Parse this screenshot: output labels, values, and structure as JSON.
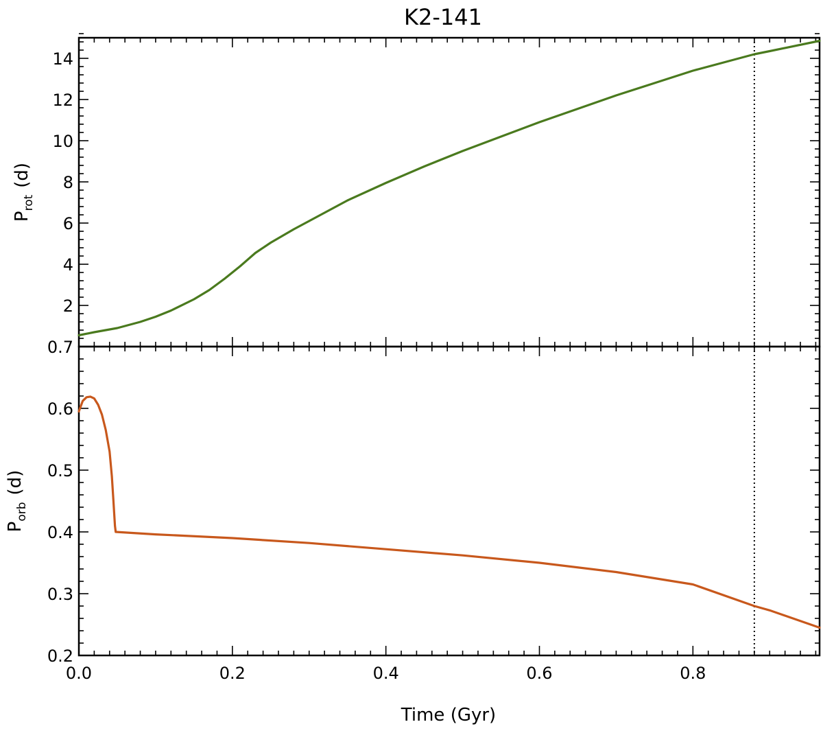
{
  "chart_data": [
    {
      "type": "line",
      "panel": "top",
      "title": "K2-141",
      "xlabel": "",
      "ylabel_main": "P",
      "ylabel_sub": "rot",
      "ylabel_unit": "(d)",
      "xlim": [
        0,
        0.965
      ],
      "ylim": [
        0,
        15
      ],
      "xticks": [
        0.0,
        0.2,
        0.4,
        0.6,
        0.8
      ],
      "yticks": [
        2,
        4,
        6,
        8,
        10,
        12,
        14
      ],
      "ytick_labels": [
        "2",
        "4",
        "6",
        "8",
        "10",
        "12",
        "14"
      ],
      "vline_x": 0.88,
      "series": [
        {
          "color": "#4a7a1e",
          "x": [
            0.0,
            0.02,
            0.05,
            0.08,
            0.1,
            0.12,
            0.15,
            0.17,
            0.19,
            0.21,
            0.23,
            0.25,
            0.28,
            0.3,
            0.35,
            0.4,
            0.45,
            0.5,
            0.55,
            0.6,
            0.65,
            0.7,
            0.75,
            0.8,
            0.85,
            0.88,
            0.9,
            0.965
          ],
          "y": [
            0.55,
            0.7,
            0.9,
            1.2,
            1.45,
            1.75,
            2.3,
            2.75,
            3.3,
            3.9,
            4.55,
            5.05,
            5.7,
            6.1,
            7.1,
            7.95,
            8.75,
            9.5,
            10.2,
            10.9,
            11.55,
            12.2,
            12.8,
            13.4,
            13.9,
            14.2,
            14.35,
            14.85
          ]
        }
      ]
    },
    {
      "type": "line",
      "panel": "bottom",
      "xlabel": "Time (Gyr)",
      "ylabel_main": "P",
      "ylabel_sub": "orb",
      "ylabel_unit": "(d)",
      "xlim": [
        0,
        0.965
      ],
      "ylim": [
        0.2,
        0.7
      ],
      "xticks": [
        0.0,
        0.2,
        0.4,
        0.6,
        0.8
      ],
      "xtick_labels": [
        "0.0",
        "0.2",
        "0.4",
        "0.6",
        "0.8"
      ],
      "yticks": [
        0.2,
        0.3,
        0.4,
        0.5,
        0.6,
        0.7
      ],
      "ytick_labels": [
        "0.2",
        "0.3",
        "0.4",
        "0.5",
        "0.6",
        "0.7"
      ],
      "vline_x": 0.88,
      "series": [
        {
          "color": "#c8581c",
          "x": [
            0.0,
            0.005,
            0.01,
            0.015,
            0.02,
            0.025,
            0.03,
            0.035,
            0.04,
            0.043,
            0.045,
            0.046,
            0.047,
            0.048,
            0.1,
            0.2,
            0.3,
            0.4,
            0.5,
            0.6,
            0.7,
            0.8,
            0.88,
            0.9,
            0.965
          ],
          "y": [
            0.595,
            0.612,
            0.618,
            0.619,
            0.616,
            0.606,
            0.59,
            0.565,
            0.53,
            0.49,
            0.45,
            0.43,
            0.41,
            0.4,
            0.396,
            0.39,
            0.382,
            0.372,
            0.362,
            0.35,
            0.335,
            0.315,
            0.28,
            0.273,
            0.245
          ]
        }
      ]
    }
  ]
}
